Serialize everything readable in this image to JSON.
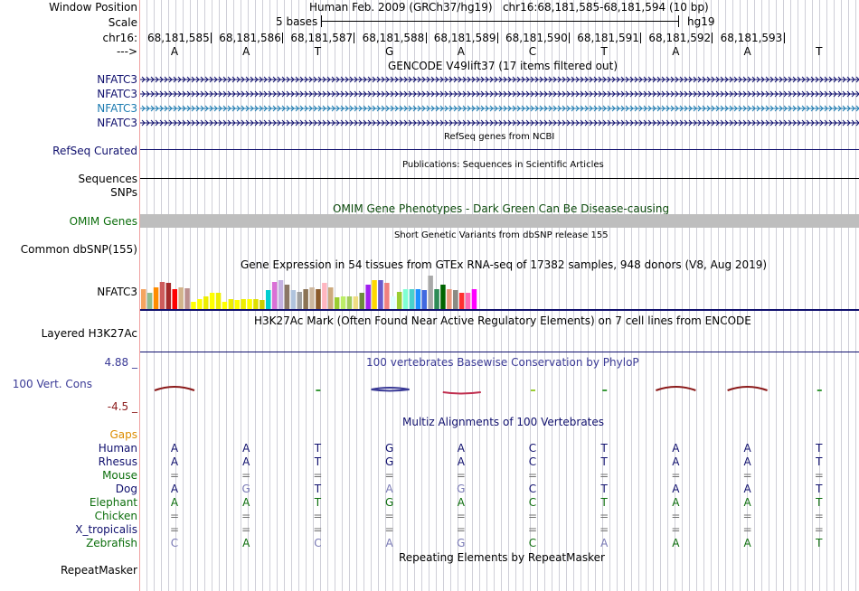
{
  "header": {
    "window_position_label": "Window Position",
    "window_position_text": "Human Feb. 2009 (GRCh37/hg19)   chr16:68,181,585-68,181,594 (10 bp)",
    "scale_label": "Scale",
    "scale_text": "5 bases",
    "assembly": "hg19",
    "chrom_label": "chr16:",
    "strand_label": "--->",
    "positions": [
      "68,181,585",
      "68,181,586",
      "68,181,587",
      "68,181,588",
      "68,181,589",
      "68,181,590",
      "68,181,591",
      "68,181,592",
      "68,181,593"
    ],
    "bases": [
      "A",
      "A",
      "T",
      "G",
      "A",
      "C",
      "T",
      "A",
      "A",
      "T"
    ]
  },
  "tracks": {
    "gencode_title": "GENCODE V49lift37 (17 items filtered out)",
    "gencode_items": [
      "NFATC3",
      "NFATC3",
      "NFATC3",
      "NFATC3"
    ],
    "refseq_label": "RefSeq Curated",
    "refseq_title": "RefSeq genes from NCBI",
    "publications_title": "Publications: Sequences in Scientific Articles",
    "sequences_label": "Sequences",
    "snps_label": "SNPs",
    "omim_title": "OMIM Gene Phenotypes - Dark Green Can Be Disease-causing",
    "omim_label": "OMIM Genes",
    "dbsnp_title": "Short Genetic Variants from dbSNP release 155",
    "dbsnp_label": "Common dbSNP(155)",
    "gtex_title": "Gene Expression in 54 tissues from GTEx RNA-seq of 17382 samples, 948 donors (V8, Aug 2019)",
    "gtex_label": "NFATC3",
    "h3k27_title": "H3K27Ac Mark (Often Found Near Active Regulatory Elements) on 7 cell lines from ENCODE",
    "h3k27_label": "Layered H3K27Ac",
    "phylop_title": "100 vertebrates Basewise Conservation by PhyloP",
    "phylop_label": "100 Vert. Cons",
    "phylop_max": "4.88 _",
    "phylop_min": "-4.5 _",
    "multiz_title": "Multiz Alignments of 100 Vertebrates",
    "gaps_label": "Gaps",
    "repeat_title": "Repeating Elements by RepeatMasker",
    "repeat_label": "RepeatMasker"
  },
  "species": [
    {
      "name": "Human",
      "color": "#10106e",
      "bases": [
        "A",
        "A",
        "T",
        "G",
        "A",
        "C",
        "T",
        "A",
        "A",
        "T"
      ],
      "faded": [
        false,
        false,
        false,
        false,
        false,
        false,
        false,
        false,
        false,
        false
      ]
    },
    {
      "name": "Rhesus",
      "color": "#10106e",
      "bases": [
        "A",
        "A",
        "T",
        "G",
        "A",
        "C",
        "T",
        "A",
        "A",
        "T"
      ],
      "faded": [
        false,
        false,
        false,
        false,
        false,
        false,
        false,
        false,
        false,
        false
      ]
    },
    {
      "name": "Mouse",
      "color": "#0c6e0c",
      "bases": [
        "=",
        "=",
        "=",
        "=",
        "=",
        "=",
        "=",
        "=",
        "=",
        "="
      ],
      "faded": [
        false,
        false,
        false,
        false,
        false,
        false,
        false,
        false,
        false,
        false
      ]
    },
    {
      "name": "Dog",
      "color": "#10106e",
      "bases": [
        "A",
        "G",
        "T",
        "A",
        "G",
        "C",
        "T",
        "A",
        "A",
        "T"
      ],
      "faded": [
        false,
        true,
        false,
        true,
        true,
        false,
        false,
        false,
        false,
        false
      ]
    },
    {
      "name": "Elephant",
      "color": "#0c6e0c",
      "bases": [
        "A",
        "A",
        "T",
        "G",
        "A",
        "C",
        "T",
        "A",
        "A",
        "T"
      ],
      "faded": [
        false,
        false,
        false,
        false,
        false,
        false,
        false,
        false,
        false,
        false
      ]
    },
    {
      "name": "Chicken",
      "color": "#0c6e0c",
      "bases": [
        "=",
        "=",
        "=",
        "=",
        "=",
        "=",
        "=",
        "=",
        "=",
        "="
      ],
      "faded": [
        false,
        false,
        false,
        false,
        false,
        false,
        false,
        false,
        false,
        false
      ]
    },
    {
      "name": "X_tropicalis",
      "color": "#10106e",
      "bases": [
        "=",
        "=",
        "=",
        "=",
        "=",
        "=",
        "=",
        "=",
        "=",
        "="
      ],
      "faded": [
        false,
        false,
        false,
        false,
        false,
        false,
        false,
        false,
        false,
        false
      ]
    },
    {
      "name": "Zebrafish",
      "color": "#0c6e0c",
      "bases": [
        "C",
        "A",
        "C",
        "A",
        "G",
        "C",
        "A",
        "A",
        "A",
        "T"
      ],
      "faded": [
        true,
        false,
        true,
        true,
        true,
        false,
        true,
        false,
        false,
        false
      ]
    }
  ],
  "gtex_values": [
    0.7,
    0.55,
    0.75,
    0.95,
    0.92,
    0.7,
    0.75,
    0.72,
    0.25,
    0.35,
    0.45,
    0.55,
    0.55,
    0.25,
    0.35,
    0.3,
    0.35,
    0.35,
    0.35,
    0.3,
    0.65,
    0.95,
    1.0,
    0.85,
    0.65,
    0.6,
    0.7,
    0.75,
    0.7,
    0.9,
    0.75,
    0.4,
    0.45,
    0.45,
    0.45,
    0.55,
    0.85,
    1.0,
    1.0,
    0.9,
    0.45,
    0.6,
    0.7,
    0.7,
    0.7,
    0.65,
    1.15,
    0.7,
    0.85,
    0.7,
    0.65,
    0.55,
    0.55,
    0.7
  ],
  "gtex_colors": [
    "#f4a460",
    "#8fbc8f",
    "#ff8c00",
    "#cd5c5c",
    "#a52a2a",
    "#ff0000",
    "#d2b48c",
    "#bc8f8f",
    "#ffff00",
    "#ffff00",
    "#eeee00",
    "#ffff00",
    "#eeee00",
    "#ffff00",
    "#eeee00",
    "#ffff00",
    "#eeee00",
    "#ffff00",
    "#e0e000",
    "#cdcd00",
    "#00ced1",
    "#da70d6",
    "#c3b1e1",
    "#8b7765",
    "#b0c4de",
    "#a0a0a0",
    "#8b7355",
    "#cdb79e",
    "#8b5a2b",
    "#ffb6c1",
    "#cdaa7d",
    "#9acd32",
    "#bcee68",
    "#a2cd5a",
    "#eedd82",
    "#6e8b3d",
    "#a020f0",
    "#ffd700",
    "#6a5acd",
    "#f08080",
    "#e0ffff",
    "#9acd32",
    "#7fffd4",
    "#48d1cc",
    "#1e90ff",
    "#4169e1",
    "#a9a9a9",
    "#2e8b57",
    "#006400",
    "#e9967a",
    "#8b8b83",
    "#ff3030",
    "#ff69b4",
    "#ff00ff"
  ],
  "colors": {
    "label_blue": "#10106e",
    "label_green": "#0c6e0c",
    "nfatc3_cyan": "#1a7ab0",
    "gaps_orange": "#dc8c00",
    "phylop_blue": "#3a3a96",
    "phylop_red": "#8b1a1a"
  }
}
